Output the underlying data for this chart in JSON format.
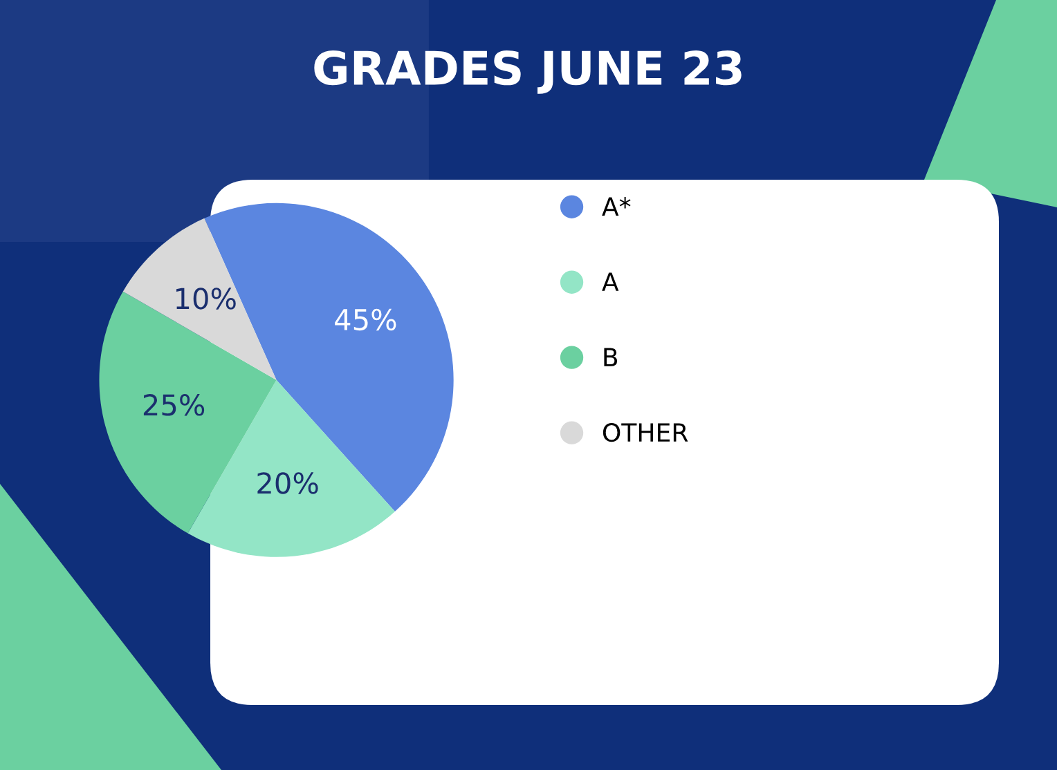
{
  "chart_data": {
    "type": "pie",
    "title": "GRADES JUNE 23",
    "categories": [
      "A*",
      "A",
      "B",
      "OTHER"
    ],
    "values": [
      45,
      20,
      25,
      10
    ],
    "colors": [
      "#5b86e0",
      "#93e5c6",
      "#6bd0a0",
      "#d9d9d9"
    ],
    "value_labels": [
      "45%",
      "20%",
      "25%",
      "10%"
    ],
    "legend": "right"
  }
}
